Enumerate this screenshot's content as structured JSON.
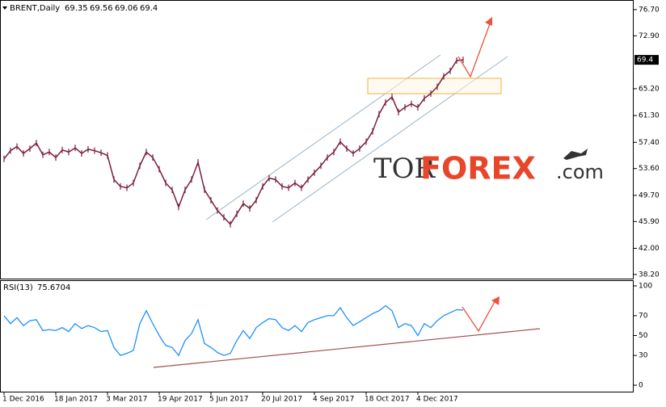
{
  "chart_data": [
    {
      "type": "line",
      "title": "BRENT,Daily",
      "header_values": [
        69.35,
        69.56,
        69.06,
        69.4
      ],
      "categories": [
        "1 Dec 2016",
        null,
        null,
        null,
        null,
        null,
        null,
        null,
        "18 Jan 2017",
        null,
        null,
        null,
        null,
        null,
        null,
        null,
        "3 Mar 2017",
        null,
        null,
        null,
        null,
        null,
        null,
        null,
        "19 Apr 2017",
        null,
        null,
        null,
        null,
        null,
        null,
        null,
        "5 Jun 2017",
        null,
        null,
        null,
        null,
        null,
        null,
        null,
        "20 Jul 2017",
        null,
        null,
        null,
        null,
        null,
        null,
        null,
        "4 Sep 2017",
        null,
        null,
        null,
        null,
        null,
        null,
        null,
        "18 Oct 2017",
        null,
        null,
        null,
        null,
        null,
        null,
        null,
        "4 Dec 2017",
        null,
        null,
        null,
        null,
        null,
        null,
        null
      ],
      "series": [
        {
          "name": "BRENT",
          "color": "#7a1f3d",
          "values": [
            55.0,
            56.2,
            56.8,
            55.8,
            56.5,
            57.3,
            55.6,
            56.0,
            55.2,
            56.3,
            56.0,
            56.6,
            55.8,
            56.4,
            56.2,
            55.9,
            55.5,
            52.0,
            51.0,
            50.8,
            51.5,
            54.0,
            56.0,
            55.2,
            53.5,
            51.5,
            50.5,
            48.0,
            50.5,
            52.0,
            54.5,
            50.5,
            49.0,
            47.5,
            46.5,
            45.5,
            47.0,
            48.5,
            47.8,
            49.0,
            51.0,
            52.2,
            52.0,
            51.0,
            50.8,
            51.5,
            50.8,
            52.0,
            53.0,
            54.0,
            55.2,
            56.0,
            57.5,
            56.5,
            55.8,
            56.5,
            57.5,
            59.0,
            61.5,
            63.2,
            64.0,
            61.8,
            62.5,
            63.0,
            62.5,
            63.8,
            64.5,
            65.5,
            67.0,
            67.8,
            69.3,
            69.4
          ]
        }
      ],
      "ylim": [
        37.6,
        78.1
      ],
      "yticks": [
        {
          "value": 38.2,
          "label": "38.20"
        },
        {
          "value": 42.0,
          "label": "42.00"
        },
        {
          "value": 45.9,
          "label": "45.90"
        },
        {
          "value": 49.7,
          "label": "49.70"
        },
        {
          "value": 53.6,
          "label": "53.60"
        },
        {
          "value": 57.4,
          "label": "57.40"
        },
        {
          "value": 61.3,
          "label": "61.30"
        },
        {
          "value": 65.2,
          "label": "65.20"
        },
        {
          "value": 72.9,
          "label": "72.90"
        },
        {
          "value": 76.7,
          "label": "76.70"
        }
      ],
      "watermark": {
        "prefix": "TOR",
        "main": "FOREX",
        "suffix": ".com"
      }
    },
    {
      "type": "line",
      "title": "RSI(13)",
      "last_value": 75.6704,
      "series": [
        {
          "name": "RSI(13)",
          "color": "#1e90ff",
          "values": [
            70,
            62,
            68,
            60,
            65,
            66,
            55,
            56,
            55,
            58,
            54,
            62,
            57,
            60,
            58,
            54,
            55,
            38,
            30,
            32,
            35,
            62,
            75,
            62,
            50,
            40,
            38,
            30,
            45,
            52,
            66,
            42,
            38,
            33,
            30,
            32,
            45,
            55,
            47,
            58,
            63,
            67,
            66,
            58,
            55,
            60,
            54,
            63,
            66,
            68,
            70,
            70,
            78,
            68,
            60,
            64,
            68,
            72,
            75,
            80,
            75,
            58,
            62,
            60,
            50,
            62,
            58,
            65,
            70,
            73,
            76,
            75.67
          ]
        }
      ],
      "ylim": [
        -6.5,
        105.7
      ],
      "yticks": [
        0,
        30,
        50,
        70,
        100
      ]
    }
  ]
}
